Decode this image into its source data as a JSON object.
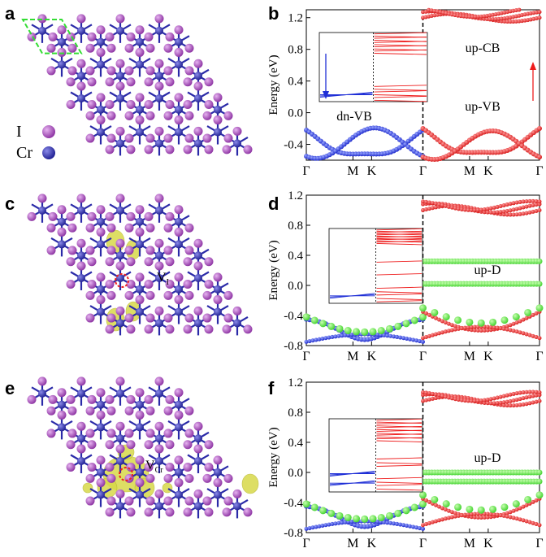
{
  "panel_labels": [
    "a",
    "b",
    "c",
    "d",
    "e",
    "f"
  ],
  "legend": {
    "iodine": {
      "label": "I",
      "color": "#9b3fb0"
    },
    "chromium": {
      "label": "Cr",
      "color": "#2a2aa8"
    }
  },
  "vacancy_labels": {
    "iodine": {
      "main": "V",
      "sub": "I"
    },
    "chromium": {
      "main": "V",
      "sub": "Cr"
    }
  },
  "colors": {
    "spin_down": "#1f2fd6",
    "spin_up": "#ee1c1c",
    "defect": "#33dd33",
    "charge_density": "#d8d94a",
    "bond": "#2a2aa8",
    "cell_outline": "#33dd33"
  },
  "chart_data": [
    {
      "type": "line",
      "panel": "b",
      "ylabel": "Energy (eV)",
      "ylim": [
        -0.6,
        1.3
      ],
      "yticks": [
        "1.2",
        "0.8",
        "0.4",
        "0.0",
        "-0.4"
      ],
      "xticks": [
        "Γ",
        "M",
        "K",
        "Γ",
        "M",
        "K",
        "Γ"
      ],
      "annotations": [
        "dn-VB",
        "up-CB",
        "up-VB"
      ],
      "series": [
        {
          "spin": "down",
          "points": [
            [
              0,
              -0.2
            ],
            [
              0.5,
              -0.45
            ],
            [
              1,
              -0.52
            ],
            [
              1.4,
              -0.48
            ],
            [
              2,
              -0.2
            ]
          ]
        },
        {
          "spin": "up",
          "points": [
            [
              0,
              -0.2
            ],
            [
              0.5,
              -0.45
            ],
            [
              1,
              -0.5
            ],
            [
              1.4,
              -0.45
            ],
            [
              2,
              -0.18
            ]
          ]
        },
        {
          "spin": "up",
          "points": [
            [
              0,
              1.18
            ],
            [
              0.5,
              1.25
            ],
            [
              1,
              1.2
            ],
            [
              1.4,
              1.25
            ],
            [
              2,
              1.18
            ]
          ]
        }
      ]
    },
    {
      "type": "line",
      "panel": "d",
      "ylabel": "Energy (eV)",
      "ylim": [
        -0.8,
        1.2
      ],
      "yticks": [
        "1.2",
        "0.8",
        "0.4",
        "0.0",
        "-0.4",
        "-0.8"
      ],
      "xticks": [
        "Γ",
        "M",
        "K",
        "Γ",
        "M",
        "K",
        "Γ"
      ],
      "annotations": [
        "up-D"
      ],
      "defect_levels_eV": [
        0.32,
        0.02
      ]
    },
    {
      "type": "line",
      "panel": "f",
      "ylabel": "Energy (eV)",
      "ylim": [
        -0.8,
        1.2
      ],
      "yticks": [
        "1.2",
        "0.8",
        "0.4",
        "0.0",
        "-0.4",
        "-0.8"
      ],
      "xticks": [
        "Γ",
        "M",
        "K",
        "Γ",
        "M",
        "K",
        "Γ"
      ],
      "annotations": [
        "up-D"
      ],
      "defect_levels_eV": [
        0.0,
        -0.12
      ]
    }
  ]
}
